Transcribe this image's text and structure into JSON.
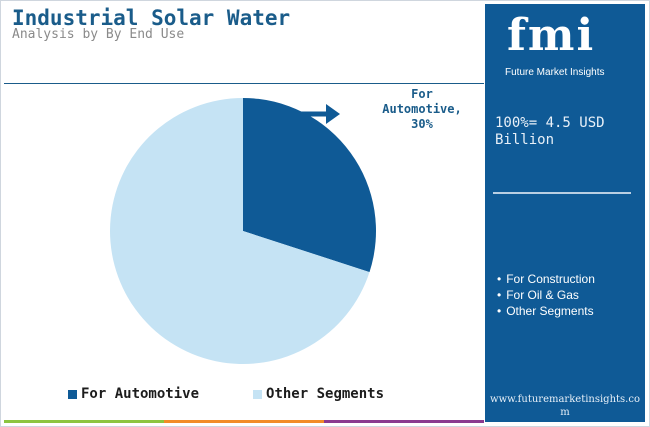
{
  "header": {
    "title": "Industrial Solar Water",
    "subtitle": "Analysis by By End Use"
  },
  "callout": {
    "label_line1": "For",
    "label_line2": "Automotive,",
    "label_line3": "30%"
  },
  "chart_data": {
    "type": "pie",
    "title": "Industrial Solar Water",
    "subtitle": "Analysis by By End Use",
    "slices": [
      {
        "name": "For Automotive",
        "value": 30,
        "color": "#0f5a96"
      },
      {
        "name": "Other Segments",
        "value": 70,
        "color": "#c5e3f4"
      }
    ],
    "start_angle_deg": 0,
    "direction": "clockwise",
    "legend_placement": "bottom"
  },
  "legend": {
    "items": [
      {
        "label": "For Automotive",
        "color": "#0f5a96"
      },
      {
        "label": "Other Segments",
        "color": "#c5e3f4"
      }
    ]
  },
  "side_panel": {
    "logo_text": "fmi",
    "logo_tagline": "Future Market Insights",
    "total_label": "100%= 4.5 USD Billion",
    "segments": [
      "For Construction",
      "For Oil & Gas",
      "Other Segments"
    ],
    "website": "www.futuremarketinsights.com"
  },
  "colors": {
    "accent": "#0f5a96",
    "title": "#1a5c8a",
    "light": "#c5e3f4",
    "bar_green": "#8cc540",
    "bar_orange": "#f28c28",
    "bar_purple": "#8b3a8f"
  }
}
